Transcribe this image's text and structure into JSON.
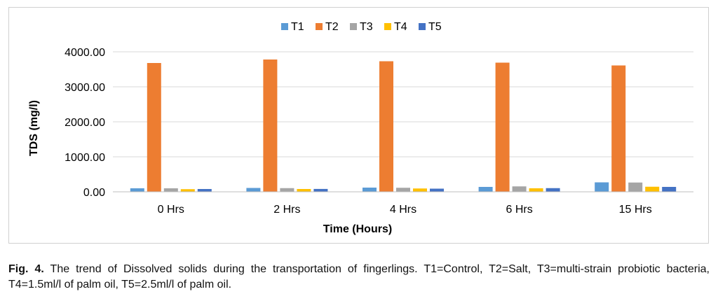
{
  "colors": {
    "T1": "#5B9BD5",
    "T2": "#ED7D31",
    "T3": "#A5A5A5",
    "T4": "#FFC000",
    "T5": "#4472C4",
    "gridline": "#d9d9d9",
    "axis": "#bfbfbf"
  },
  "chart_data": {
    "type": "bar",
    "title": "",
    "xlabel": "Time (Hours)",
    "ylabel": "TDS (mg/l)",
    "ylim": [
      0,
      4000
    ],
    "yticks": [
      "0.00",
      "1000.00",
      "2000.00",
      "3000.00",
      "4000.00"
    ],
    "yticks_values": [
      0,
      1000,
      2000,
      3000,
      4000
    ],
    "categories": [
      "0 Hrs",
      "2 Hrs",
      "4 Hrs",
      "6 Hrs",
      "15 Hrs"
    ],
    "legend_position": "top",
    "grid": true,
    "series": [
      {
        "name": "T1",
        "values": [
          100,
          110,
          120,
          140,
          270
        ]
      },
      {
        "name": "T2",
        "values": [
          3680,
          3780,
          3730,
          3690,
          3610
        ]
      },
      {
        "name": "T3",
        "values": [
          100,
          105,
          115,
          155,
          265
        ]
      },
      {
        "name": "T4",
        "values": [
          75,
          80,
          95,
          100,
          145
        ]
      },
      {
        "name": "T5",
        "values": [
          80,
          82,
          90,
          105,
          140
        ]
      }
    ]
  },
  "caption": {
    "label": "Fig. 4.",
    "text": " The trend of Dissolved solids during the transportation of fingerlings. T1=Control, T2=Salt, T3=multi-strain probiotic bacteria, T4=1.5ml/l of palm oil, T5=2.5ml/l of palm oil."
  }
}
